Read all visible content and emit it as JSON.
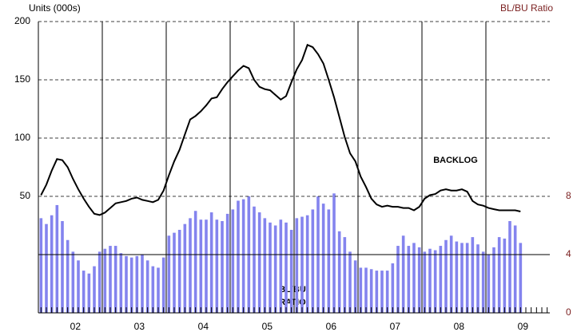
{
  "chart_data": {
    "type": "bar-line",
    "y_label": "Units (000s)",
    "y2_label": "BL/BU Ratio",
    "annotations": [
      "BACKLOG",
      "BL/BU",
      "RATIO"
    ],
    "categories": [
      null,
      null,
      null,
      null,
      null,
      null,
      "02",
      null,
      null,
      null,
      null,
      null,
      null,
      null,
      null,
      null,
      null,
      null,
      "03",
      null,
      null,
      null,
      null,
      null,
      null,
      null,
      null,
      null,
      null,
      null,
      "04",
      null,
      null,
      null,
      null,
      null,
      null,
      null,
      null,
      null,
      null,
      null,
      "05",
      null,
      null,
      null,
      null,
      null,
      null,
      null,
      null,
      null,
      null,
      null,
      "06",
      null,
      null,
      null,
      null,
      null,
      null,
      null,
      null,
      null,
      null,
      null,
      "07",
      null,
      null,
      null,
      null,
      null,
      null,
      null,
      null,
      null,
      null,
      null,
      "08",
      null,
      null,
      null,
      null,
      null,
      null,
      null,
      null,
      null,
      null,
      null,
      "09",
      null,
      null,
      null,
      null,
      null
    ],
    "series": [
      {
        "name": "BL/BU RATIO",
        "kind": "bar",
        "axis": "y2",
        "color": "#8484ee",
        "values": [
          6.5,
          6.1,
          6.7,
          7.4,
          6.3,
          5.0,
          4.2,
          3.6,
          2.9,
          2.7,
          3.2,
          4.2,
          4.4,
          4.6,
          4.6,
          4.1,
          3.9,
          3.8,
          3.9,
          4.0,
          3.6,
          3.2,
          3.1,
          3.8,
          5.3,
          5.5,
          5.7,
          6.1,
          6.5,
          7.0,
          6.4,
          6.4,
          6.9,
          6.4,
          6.3,
          6.8,
          7.1,
          7.7,
          7.8,
          8.0,
          7.3,
          6.9,
          6.5,
          6.2,
          6.0,
          6.4,
          6.2,
          5.7,
          6.5,
          6.6,
          6.7,
          7.1,
          8.0,
          7.5,
          7.1,
          8.2,
          5.6,
          5.2,
          4.2,
          3.6,
          3.1,
          3.1,
          3.0,
          2.9,
          2.9,
          2.9,
          3.4,
          4.6,
          5.3,
          4.6,
          4.8,
          4.5,
          4.2,
          4.4,
          4.3,
          4.6,
          5.0,
          5.3,
          4.9,
          4.8,
          4.8,
          5.2,
          4.7,
          4.2,
          4.0,
          4.5,
          5.2,
          5.1,
          6.3,
          6.0,
          4.8,
          null,
          null,
          null,
          null,
          null
        ]
      },
      {
        "name": "BACKLOG",
        "kind": "line",
        "color": "#000000",
        "values": [
          51,
          60,
          72,
          82,
          81,
          75,
          65,
          56,
          48,
          41,
          35,
          34,
          36,
          40,
          44,
          45,
          46,
          48,
          49,
          47,
          46,
          45,
          47,
          55,
          68,
          80,
          90,
          103,
          116,
          119,
          123,
          128,
          134,
          135,
          142,
          148,
          153,
          158,
          162,
          160,
          150,
          144,
          142,
          141,
          137,
          133,
          136,
          148,
          159,
          167,
          180,
          178,
          172,
          164,
          150,
          135,
          118,
          101,
          87,
          80,
          67,
          58,
          48,
          43,
          41,
          42,
          41,
          41,
          40,
          40,
          38,
          41,
          48,
          51,
          52,
          55,
          56,
          55,
          55,
          56,
          54,
          46,
          43,
          42,
          40,
          39,
          38,
          38,
          38,
          38,
          37,
          null,
          null,
          null,
          null,
          null
        ]
      }
    ],
    "ylim": [
      -50,
      200
    ],
    "yticks": [
      50,
      100,
      150,
      200
    ],
    "y2lim": [
      0,
      20
    ],
    "y2ticks": [
      0,
      4,
      8
    ],
    "grid": true
  }
}
